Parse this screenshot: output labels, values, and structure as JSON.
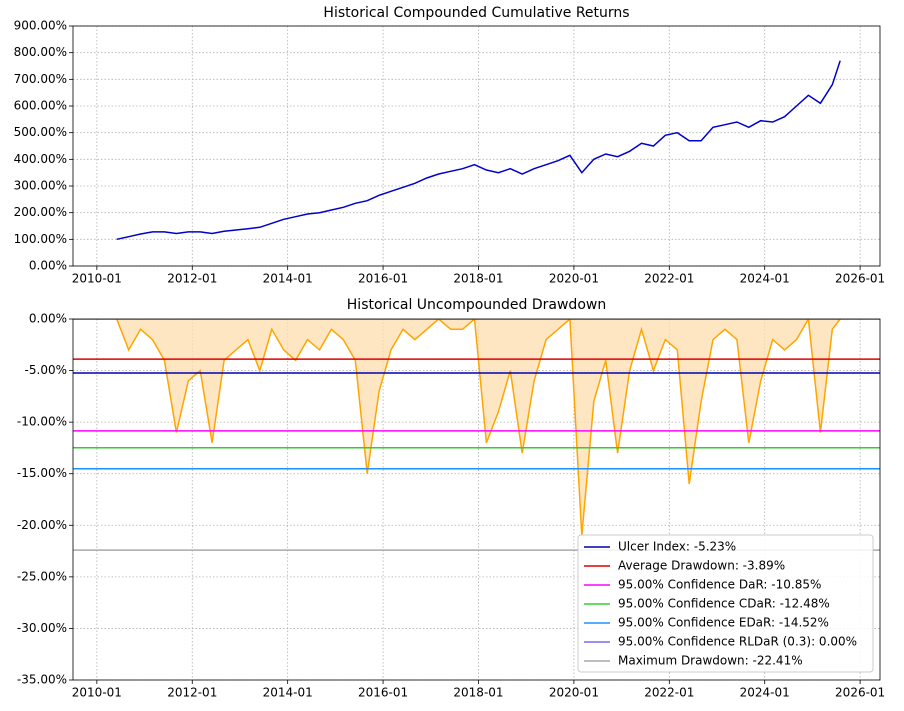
{
  "chart_data": [
    {
      "type": "line",
      "title": "Historical Compounded Cumulative Returns",
      "x": [
        "2010-06",
        "2010-09",
        "2010-12",
        "2011-03",
        "2011-06",
        "2011-09",
        "2011-12",
        "2012-03",
        "2012-06",
        "2012-09",
        "2012-12",
        "2013-03",
        "2013-06",
        "2013-09",
        "2013-12",
        "2014-03",
        "2014-06",
        "2014-09",
        "2014-12",
        "2015-03",
        "2015-06",
        "2015-09",
        "2015-12",
        "2016-03",
        "2016-06",
        "2016-09",
        "2016-12",
        "2017-03",
        "2017-06",
        "2017-09",
        "2017-12",
        "2018-03",
        "2018-06",
        "2018-09",
        "2018-12",
        "2019-03",
        "2019-06",
        "2019-09",
        "2019-12",
        "2020-03",
        "2020-06",
        "2020-09",
        "2020-12",
        "2021-03",
        "2021-06",
        "2021-09",
        "2021-12",
        "2022-03",
        "2022-06",
        "2022-09",
        "2022-12",
        "2023-03",
        "2023-06",
        "2023-09",
        "2023-12",
        "2024-03",
        "2024-06",
        "2024-09",
        "2024-12",
        "2025-03",
        "2025-06",
        "2025-08"
      ],
      "series": [
        {
          "name": "Cumulative Returns",
          "color": "#0000cd",
          "values": [
            100,
            110,
            120,
            128,
            128,
            122,
            128,
            128,
            122,
            130,
            135,
            140,
            145,
            160,
            175,
            185,
            195,
            200,
            210,
            220,
            235,
            245,
            265,
            280,
            295,
            310,
            330,
            345,
            355,
            365,
            380,
            360,
            350,
            365,
            345,
            365,
            380,
            395,
            415,
            350,
            400,
            420,
            410,
            430,
            460,
            450,
            490,
            500,
            470,
            470,
            520,
            530,
            540,
            520,
            545,
            540,
            560,
            600,
            640,
            610,
            680,
            770
          ]
        }
      ],
      "xlim": [
        "2009-07",
        "2026-06"
      ],
      "xticks": [
        "2010-01",
        "2012-01",
        "2014-01",
        "2016-01",
        "2018-01",
        "2020-01",
        "2022-01",
        "2024-01",
        "2026-01"
      ],
      "ylim": [
        0,
        900
      ],
      "yticks": [
        {
          "value": 0,
          "label": "0.00%"
        },
        {
          "value": 100,
          "label": "100.00%"
        },
        {
          "value": 200,
          "label": "200.00%"
        },
        {
          "value": 300,
          "label": "300.00%"
        },
        {
          "value": 400,
          "label": "400.00%"
        },
        {
          "value": 500,
          "label": "500.00%"
        },
        {
          "value": 600,
          "label": "600.00%"
        },
        {
          "value": 700,
          "label": "700.00%"
        },
        {
          "value": 800,
          "label": "800.00%"
        },
        {
          "value": 900,
          "label": "900.00%"
        }
      ],
      "grid": true
    },
    {
      "type": "area",
      "title": "Historical Uncompounded Drawdown",
      "x": [
        "2010-06",
        "2010-09",
        "2010-12",
        "2011-03",
        "2011-06",
        "2011-09",
        "2011-12",
        "2012-03",
        "2012-06",
        "2012-09",
        "2012-12",
        "2013-03",
        "2013-06",
        "2013-09",
        "2013-12",
        "2014-03",
        "2014-06",
        "2014-09",
        "2014-12",
        "2015-03",
        "2015-06",
        "2015-09",
        "2015-12",
        "2016-03",
        "2016-06",
        "2016-09",
        "2016-12",
        "2017-03",
        "2017-06",
        "2017-09",
        "2017-12",
        "2018-03",
        "2018-06",
        "2018-09",
        "2018-12",
        "2019-03",
        "2019-06",
        "2019-09",
        "2019-12",
        "2020-03",
        "2020-06",
        "2020-09",
        "2020-12",
        "2021-03",
        "2021-06",
        "2021-09",
        "2021-12",
        "2022-03",
        "2022-06",
        "2022-09",
        "2022-12",
        "2023-03",
        "2023-06",
        "2023-09",
        "2023-12",
        "2024-03",
        "2024-06",
        "2024-09",
        "2024-12",
        "2025-03",
        "2025-06",
        "2025-08"
      ],
      "series": [
        {
          "name": "Drawdown",
          "color": "#ffa500",
          "fill": "#ffdead",
          "values": [
            0,
            -3,
            -1,
            -2,
            -4,
            -11,
            -6,
            -5,
            -12,
            -4,
            -3,
            -2,
            -5,
            -1,
            -3,
            -4,
            -2,
            -3,
            -1,
            -2,
            -4,
            -15,
            -7,
            -3,
            -1,
            -2,
            -1,
            0,
            -1,
            -1,
            0,
            -12,
            -9,
            -5,
            -13,
            -6,
            -2,
            -1,
            0,
            -21,
            -8,
            -4,
            -13,
            -5,
            -1,
            -5,
            -2,
            -3,
            -16,
            -8,
            -2,
            -1,
            -2,
            -12,
            -6,
            -2,
            -3,
            -2,
            0,
            -11,
            -1,
            0
          ]
        }
      ],
      "lines": [
        {
          "name": "Ulcer Index: -5.23%",
          "value": -5.23,
          "color": "#0000b0"
        },
        {
          "name": "Average Drawdown: -3.89%",
          "value": -3.89,
          "color": "#e00000"
        },
        {
          "name": "95.00% Confidence DaR: -10.85%",
          "value": -10.85,
          "color": "#ff00ff"
        },
        {
          "name": "95.00% Confidence CDaR: -12.48%",
          "value": -12.48,
          "color": "#32cd32"
        },
        {
          "name": "95.00% Confidence EDaR: -14.52%",
          "value": -14.52,
          "color": "#1e90ff"
        },
        {
          "name": "95.00% Confidence RLDaR (0.3): 0.00%",
          "value": 0,
          "color": "#7b68ee"
        },
        {
          "name": "Maximum Drawdown: -22.41%",
          "value": -22.41,
          "color": "#a9a9a9"
        }
      ],
      "legend": "lower right",
      "xlim": [
        "2009-07",
        "2026-06"
      ],
      "xticks": [
        "2010-01",
        "2012-01",
        "2014-01",
        "2016-01",
        "2018-01",
        "2020-01",
        "2022-01",
        "2024-01",
        "2026-01"
      ],
      "ylim": [
        -35,
        0
      ],
      "yticks": [
        {
          "value": -35,
          "label": "-35.00%"
        },
        {
          "value": -30,
          "label": "-30.00%"
        },
        {
          "value": -25,
          "label": "-25.00%"
        },
        {
          "value": -20,
          "label": "-20.00%"
        },
        {
          "value": -15,
          "label": "-15.00%"
        },
        {
          "value": -10,
          "label": "-10.00%"
        },
        {
          "value": -5,
          "label": "-5.00%"
        },
        {
          "value": 0,
          "label": "0.00%"
        }
      ],
      "grid": true
    }
  ]
}
